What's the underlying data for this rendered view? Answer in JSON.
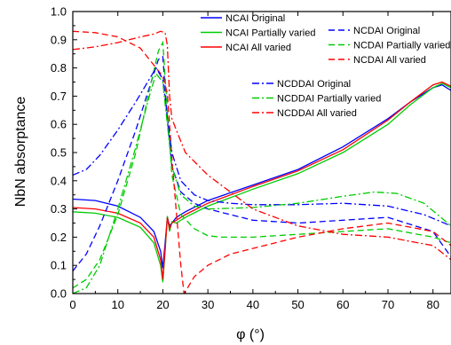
{
  "chart_data": {
    "type": "line",
    "xlabel": "φ (°)",
    "ylabel": "NbN absorptance",
    "xlim": [
      0,
      84
    ],
    "ylim": [
      0.0,
      1.0
    ],
    "xticks": [
      "0",
      "10",
      "20",
      "30",
      "40",
      "50",
      "60",
      "70",
      "80"
    ],
    "yticks": [
      "0.0",
      "0.1",
      "0.2",
      "0.3",
      "0.4",
      "0.5",
      "0.6",
      "0.7",
      "0.8",
      "0.9",
      "1.0"
    ],
    "grid": false,
    "legend_groups": [
      {
        "placement": "top-center-left",
        "entries": [
          "NCAI Original",
          "NCAI Partially varied",
          "NCAI All varied"
        ]
      },
      {
        "placement": "top-right",
        "entries": [
          "NCDAI Original",
          "NCDAI Partially varied",
          "NCDAI All varied"
        ]
      },
      {
        "placement": "upper-middle-right",
        "entries": [
          "NCDDAI Original",
          "NCDDAI Partially varied",
          "NCDDAI All varied"
        ]
      }
    ],
    "series": [
      {
        "name": "NCAI Original",
        "color": "#0000ff",
        "dash": "solid",
        "x": [
          0,
          5,
          10,
          15,
          18,
          19.5,
          20,
          20.5,
          21,
          21.5,
          22,
          23,
          25,
          30,
          40,
          50,
          60,
          70,
          75,
          80,
          82,
          84
        ],
        "y": [
          0.335,
          0.33,
          0.31,
          0.27,
          0.22,
          0.15,
          0.09,
          0.18,
          0.27,
          0.24,
          0.25,
          0.27,
          0.29,
          0.33,
          0.385,
          0.44,
          0.52,
          0.62,
          0.68,
          0.73,
          0.74,
          0.72
        ]
      },
      {
        "name": "NCAI Partially varied",
        "color": "#00cc00",
        "dash": "solid",
        "x": [
          0,
          5,
          10,
          15,
          18,
          19.5,
          20,
          20.5,
          21,
          21.5,
          22,
          23,
          25,
          30,
          40,
          50,
          60,
          70,
          75,
          80,
          82,
          84
        ],
        "y": [
          0.29,
          0.285,
          0.27,
          0.235,
          0.18,
          0.1,
          0.04,
          0.15,
          0.275,
          0.22,
          0.255,
          0.25,
          0.27,
          0.31,
          0.37,
          0.425,
          0.5,
          0.6,
          0.67,
          0.73,
          0.745,
          0.73
        ]
      },
      {
        "name": "NCAI All varied",
        "color": "#ff0000",
        "dash": "solid",
        "x": [
          0,
          5,
          10,
          15,
          18,
          19.5,
          20,
          20.5,
          21,
          21.5,
          22,
          23,
          25,
          30,
          40,
          50,
          60,
          70,
          75,
          80,
          82,
          84
        ],
        "y": [
          0.305,
          0.3,
          0.285,
          0.25,
          0.2,
          0.12,
          0.05,
          0.16,
          0.27,
          0.23,
          0.25,
          0.26,
          0.28,
          0.32,
          0.38,
          0.435,
          0.51,
          0.615,
          0.68,
          0.74,
          0.75,
          0.735
        ]
      },
      {
        "name": "NCDAI Original",
        "color": "#0000ff",
        "dash": "dash",
        "x": [
          0,
          3,
          6,
          10,
          14,
          17,
          19,
          20,
          21,
          22,
          24,
          27,
          30,
          35,
          40,
          50,
          60,
          70,
          80,
          84
        ],
        "y": [
          0.08,
          0.14,
          0.24,
          0.4,
          0.58,
          0.73,
          0.83,
          0.84,
          0.62,
          0.45,
          0.36,
          0.32,
          0.3,
          0.28,
          0.26,
          0.25,
          0.26,
          0.27,
          0.22,
          0.13
        ]
      },
      {
        "name": "NCDAI Partially varied",
        "color": "#00cc00",
        "dash": "dash",
        "x": [
          0,
          3,
          6,
          10,
          14,
          17,
          19,
          20,
          21,
          22,
          24,
          27,
          30,
          33,
          40,
          50,
          60,
          70,
          80,
          84
        ],
        "y": [
          0.02,
          0.05,
          0.12,
          0.28,
          0.5,
          0.72,
          0.86,
          0.89,
          0.65,
          0.42,
          0.28,
          0.23,
          0.205,
          0.2,
          0.2,
          0.21,
          0.22,
          0.23,
          0.2,
          0.18
        ]
      },
      {
        "name": "NCDAI All varied",
        "color": "#ff0000",
        "dash": "dash",
        "x": [
          0,
          5,
          10,
          15,
          18,
          20,
          21,
          21.5,
          22,
          23,
          24,
          24.7,
          25.5,
          27,
          30,
          35,
          40,
          50,
          60,
          70,
          80,
          84
        ],
        "y": [
          0.93,
          0.925,
          0.91,
          0.87,
          0.81,
          0.77,
          0.71,
          0.6,
          0.48,
          0.29,
          0.1,
          0.0,
          0.02,
          0.06,
          0.1,
          0.14,
          0.16,
          0.2,
          0.23,
          0.25,
          0.22,
          0.17
        ]
      },
      {
        "name": "NCDDAI Original",
        "color": "#0000ff",
        "dash": "dashdot",
        "x": [
          0,
          3,
          6,
          10,
          14,
          17,
          18.5,
          20,
          21,
          22,
          24,
          27,
          30,
          35,
          40,
          50,
          60,
          70,
          78,
          84
        ],
        "y": [
          0.42,
          0.44,
          0.49,
          0.58,
          0.68,
          0.76,
          0.8,
          0.76,
          0.62,
          0.5,
          0.4,
          0.35,
          0.33,
          0.32,
          0.315,
          0.315,
          0.32,
          0.31,
          0.28,
          0.24
        ]
      },
      {
        "name": "NCDDAI Partially varied",
        "color": "#00cc00",
        "dash": "dashdot",
        "x": [
          0,
          3,
          6,
          10,
          14,
          17,
          18.5,
          20,
          21,
          22,
          24,
          27,
          30,
          40,
          50,
          60,
          67,
          72,
          78,
          84
        ],
        "y": [
          0.0,
          0.02,
          0.1,
          0.3,
          0.52,
          0.7,
          0.78,
          0.75,
          0.6,
          0.45,
          0.35,
          0.31,
          0.3,
          0.305,
          0.32,
          0.345,
          0.36,
          0.355,
          0.32,
          0.24
        ]
      },
      {
        "name": "NCDDAI All varied",
        "color": "#ff0000",
        "dash": "dashdot",
        "x": [
          0,
          5,
          10,
          15,
          18,
          19.5,
          20.5,
          21,
          21.5,
          22,
          23,
          25,
          30,
          35,
          40,
          50,
          60,
          70,
          80,
          84
        ],
        "y": [
          0.865,
          0.875,
          0.89,
          0.91,
          0.92,
          0.93,
          0.925,
          0.88,
          0.7,
          0.62,
          0.58,
          0.5,
          0.42,
          0.36,
          0.3,
          0.24,
          0.21,
          0.2,
          0.17,
          0.12
        ]
      }
    ]
  }
}
